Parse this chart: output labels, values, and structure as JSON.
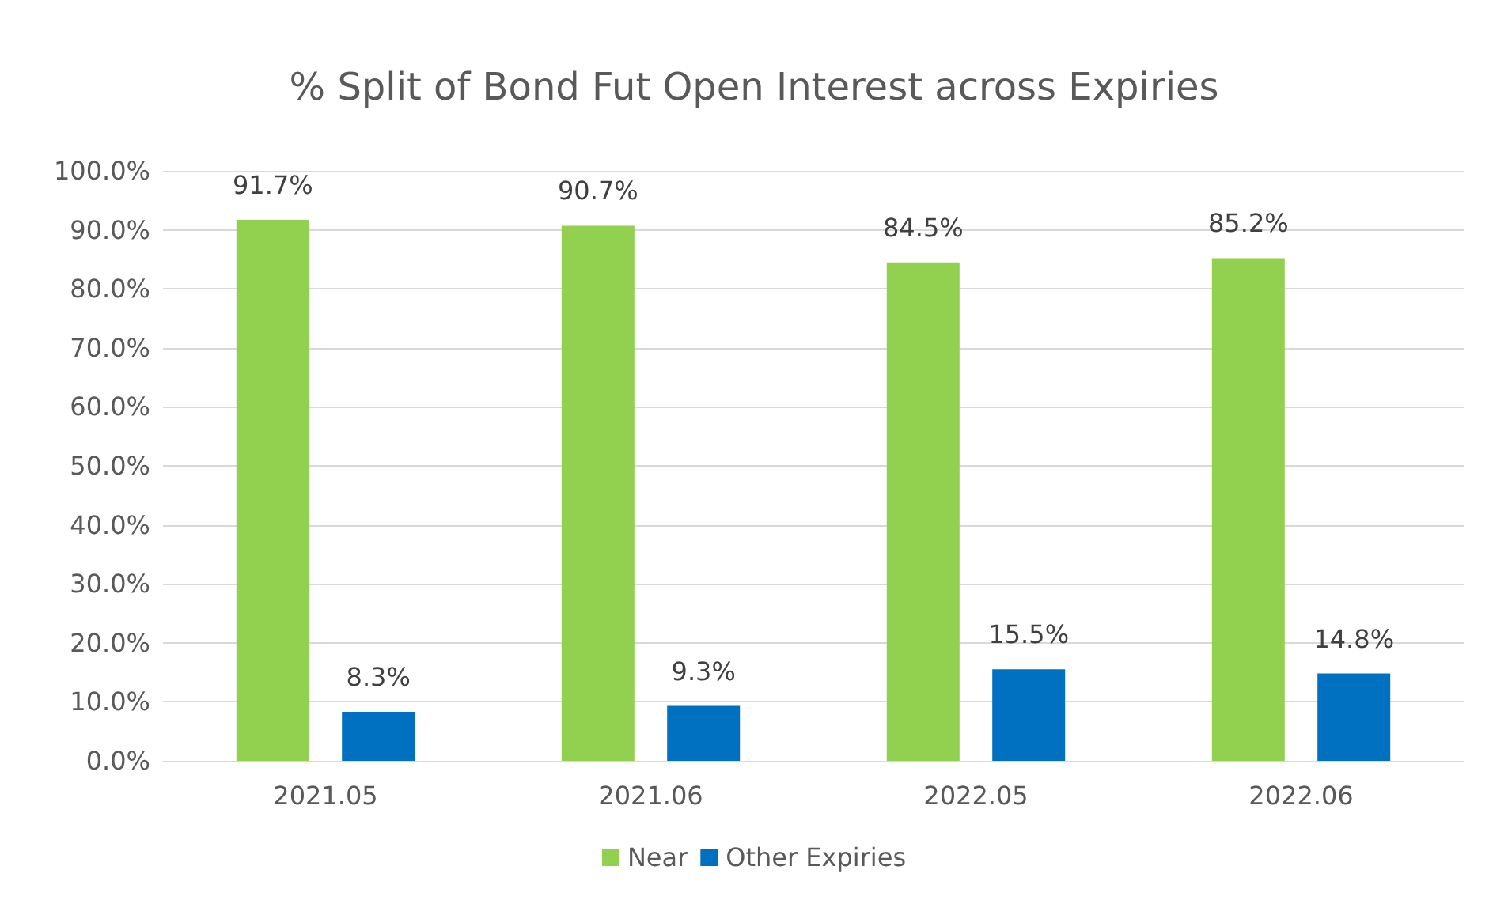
{
  "chart_data": {
    "type": "bar",
    "title": "% Split of Bond Fut Open Interest across Expiries",
    "categories": [
      "2021.05",
      "2021.06",
      "2022.05",
      "2022.06"
    ],
    "series": [
      {
        "name": "Near",
        "color": "#92d050",
        "values": [
          91.7,
          90.7,
          84.5,
          85.2
        ],
        "value_labels": [
          "91.7%",
          "90.7%",
          "84.5%",
          "85.2%"
        ]
      },
      {
        "name": "Other Expiries",
        "color": "#0070c0",
        "values": [
          8.3,
          9.3,
          15.5,
          14.8
        ],
        "value_labels": [
          "8.3%",
          "9.3%",
          "15.5%",
          "14.8%"
        ]
      }
    ],
    "ylim": [
      0,
      100
    ],
    "yticks": [
      {
        "value": 0,
        "label": "0.0%"
      },
      {
        "value": 10,
        "label": "10.0%"
      },
      {
        "value": 20,
        "label": "20.0%"
      },
      {
        "value": 30,
        "label": "30.0%"
      },
      {
        "value": 40,
        "label": "40.0%"
      },
      {
        "value": 50,
        "label": "50.0%"
      },
      {
        "value": 60,
        "label": "60.0%"
      },
      {
        "value": 70,
        "label": "70.0%"
      },
      {
        "value": 80,
        "label": "80.0%"
      },
      {
        "value": 90,
        "label": "90.0%"
      },
      {
        "value": 100,
        "label": "100.0%"
      }
    ],
    "grid": "y",
    "legend": "bottom"
  }
}
